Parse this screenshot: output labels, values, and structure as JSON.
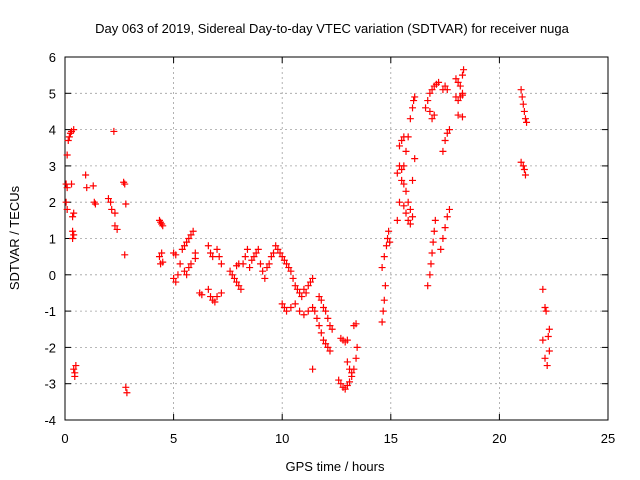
{
  "chart_data": {
    "type": "scatter",
    "title": "Day 063 of 2019, Sidereal Day-to-day VTEC variation (SDTVAR) for receiver nuga",
    "xlabel": "GPS time / hours",
    "ylabel": "SDTVAR / TECUs",
    "xlim": [
      0,
      25
    ],
    "ylim": [
      -4,
      6
    ],
    "xticks": [
      0,
      5,
      10,
      15,
      20,
      25
    ],
    "yticks": [
      -4,
      -3,
      -2,
      -1,
      0,
      1,
      2,
      3,
      4,
      5,
      6
    ],
    "grid": true,
    "marker": "+",
    "color": "#ff0000",
    "series": [
      {
        "name": "SDTVAR",
        "points": [
          [
            0.05,
            2.5
          ],
          [
            0.1,
            2.4
          ],
          [
            0.05,
            2.0
          ],
          [
            0.1,
            1.8
          ],
          [
            0.1,
            3.3
          ],
          [
            0.15,
            3.7
          ],
          [
            0.2,
            3.8
          ],
          [
            0.25,
            3.9
          ],
          [
            0.3,
            3.95
          ],
          [
            0.4,
            4.0
          ],
          [
            0.3,
            2.5
          ],
          [
            0.35,
            1.6
          ],
          [
            0.4,
            1.7
          ],
          [
            0.35,
            1.2
          ],
          [
            0.35,
            1.0
          ],
          [
            0.4,
            1.1
          ],
          [
            0.4,
            -2.6
          ],
          [
            0.45,
            -2.7
          ],
          [
            0.45,
            -2.8
          ],
          [
            0.5,
            -2.5
          ],
          [
            0.95,
            2.75
          ],
          [
            1.0,
            2.4
          ],
          [
            1.3,
            2.45
          ],
          [
            1.35,
            2.0
          ],
          [
            1.4,
            1.95
          ],
          [
            2.0,
            2.1
          ],
          [
            2.1,
            2.0
          ],
          [
            2.15,
            1.8
          ],
          [
            2.25,
            3.95
          ],
          [
            2.3,
            1.7
          ],
          [
            2.3,
            1.35
          ],
          [
            2.4,
            1.25
          ],
          [
            2.7,
            2.55
          ],
          [
            2.75,
            2.5
          ],
          [
            2.8,
            1.95
          ],
          [
            2.75,
            0.55
          ],
          [
            2.8,
            -3.1
          ],
          [
            2.85,
            -3.25
          ],
          [
            4.35,
            1.5
          ],
          [
            4.4,
            1.45
          ],
          [
            4.45,
            1.4
          ],
          [
            4.5,
            1.35
          ],
          [
            4.35,
            0.5
          ],
          [
            4.4,
            0.3
          ],
          [
            4.45,
            0.6
          ],
          [
            4.5,
            0.35
          ],
          [
            5.0,
            0.6
          ],
          [
            5.1,
            0.55
          ],
          [
            5.0,
            -0.1
          ],
          [
            5.1,
            -0.2
          ],
          [
            5.2,
            0.0
          ],
          [
            5.3,
            0.3
          ],
          [
            5.4,
            0.7
          ],
          [
            5.5,
            0.8
          ],
          [
            5.6,
            0.9
          ],
          [
            5.7,
            1.0
          ],
          [
            5.8,
            1.1
          ],
          [
            5.9,
            1.2
          ],
          [
            5.5,
            0.1
          ],
          [
            5.6,
            0.0
          ],
          [
            5.7,
            0.2
          ],
          [
            5.8,
            0.3
          ],
          [
            6.0,
            0.45
          ],
          [
            6.0,
            0.6
          ],
          [
            6.2,
            -0.5
          ],
          [
            6.3,
            -0.55
          ],
          [
            6.6,
            -0.4
          ],
          [
            6.7,
            -0.6
          ],
          [
            6.8,
            -0.7
          ],
          [
            6.9,
            -0.75
          ],
          [
            7.0,
            -0.6
          ],
          [
            6.6,
            0.8
          ],
          [
            6.7,
            0.6
          ],
          [
            6.8,
            0.5
          ],
          [
            7.0,
            0.7
          ],
          [
            7.1,
            0.5
          ],
          [
            7.2,
            0.3
          ],
          [
            7.2,
            -0.5
          ],
          [
            7.6,
            0.1
          ],
          [
            7.7,
            0.0
          ],
          [
            7.8,
            -0.1
          ],
          [
            7.9,
            -0.2
          ],
          [
            8.0,
            -0.3
          ],
          [
            8.1,
            -0.4
          ],
          [
            7.9,
            0.25
          ],
          [
            8.0,
            0.3
          ],
          [
            8.2,
            0.3
          ],
          [
            8.3,
            0.5
          ],
          [
            8.4,
            0.7
          ],
          [
            8.5,
            0.2
          ],
          [
            8.6,
            0.4
          ],
          [
            8.7,
            0.5
          ],
          [
            8.8,
            0.6
          ],
          [
            8.9,
            0.7
          ],
          [
            9.0,
            0.3
          ],
          [
            9.1,
            0.1
          ],
          [
            9.2,
            -0.1
          ],
          [
            9.3,
            0.2
          ],
          [
            9.4,
            0.3
          ],
          [
            9.5,
            0.5
          ],
          [
            9.6,
            0.6
          ],
          [
            9.7,
            0.8
          ],
          [
            9.8,
            0.7
          ],
          [
            9.9,
            0.6
          ],
          [
            10.0,
            0.5
          ],
          [
            10.1,
            0.4
          ],
          [
            10.2,
            0.3
          ],
          [
            10.3,
            0.2
          ],
          [
            10.4,
            0.1
          ],
          [
            10.5,
            -0.1
          ],
          [
            10.6,
            -0.3
          ],
          [
            10.7,
            -0.4
          ],
          [
            10.8,
            -0.5
          ],
          [
            10.9,
            -0.6
          ],
          [
            11.0,
            -0.4
          ],
          [
            11.1,
            -0.5
          ],
          [
            11.2,
            -0.3
          ],
          [
            11.3,
            -0.2
          ],
          [
            11.4,
            -0.1
          ],
          [
            10.0,
            -0.8
          ],
          [
            10.1,
            -0.9
          ],
          [
            10.2,
            -1.0
          ],
          [
            10.4,
            -0.9
          ],
          [
            10.6,
            -0.8
          ],
          [
            10.8,
            -1.0
          ],
          [
            11.0,
            -1.1
          ],
          [
            11.2,
            -1.0
          ],
          [
            11.4,
            -0.9
          ],
          [
            11.5,
            -1.0
          ],
          [
            11.6,
            -1.2
          ],
          [
            11.7,
            -1.4
          ],
          [
            11.8,
            -1.6
          ],
          [
            11.9,
            -1.8
          ],
          [
            12.0,
            -1.9
          ],
          [
            12.1,
            -2.0
          ],
          [
            12.2,
            -2.1
          ],
          [
            11.7,
            -0.6
          ],
          [
            11.8,
            -0.7
          ],
          [
            11.9,
            -0.9
          ],
          [
            12.0,
            -1.0
          ],
          [
            12.1,
            -1.2
          ],
          [
            12.2,
            -1.4
          ],
          [
            12.3,
            -1.5
          ],
          [
            11.4,
            -2.6
          ],
          [
            12.7,
            -1.75
          ],
          [
            12.8,
            -1.8
          ],
          [
            12.9,
            -1.85
          ],
          [
            13.0,
            -1.8
          ],
          [
            12.6,
            -2.9
          ],
          [
            12.7,
            -3.0
          ],
          [
            12.8,
            -3.1
          ],
          [
            12.9,
            -3.15
          ],
          [
            13.0,
            -3.05
          ],
          [
            13.1,
            -2.95
          ],
          [
            13.2,
            -2.8
          ],
          [
            13.3,
            -2.6
          ],
          [
            13.4,
            -2.3
          ],
          [
            13.45,
            -2.0
          ],
          [
            13.0,
            -2.4
          ],
          [
            13.1,
            -2.6
          ],
          [
            13.2,
            -2.7
          ],
          [
            13.3,
            -1.4
          ],
          [
            13.4,
            -1.35
          ],
          [
            14.6,
            -1.3
          ],
          [
            14.65,
            -1.0
          ],
          [
            14.7,
            -0.7
          ],
          [
            14.75,
            -0.3
          ],
          [
            14.6,
            0.2
          ],
          [
            14.7,
            0.5
          ],
          [
            14.8,
            0.8
          ],
          [
            14.85,
            1.0
          ],
          [
            14.9,
            1.2
          ],
          [
            14.95,
            0.9
          ],
          [
            15.3,
            1.5
          ],
          [
            15.4,
            2.0
          ],
          [
            15.5,
            2.6
          ],
          [
            15.6,
            3.0
          ],
          [
            15.7,
            3.4
          ],
          [
            15.8,
            3.8
          ],
          [
            15.9,
            4.3
          ],
          [
            16.0,
            4.6
          ],
          [
            16.05,
            4.8
          ],
          [
            16.1,
            4.9
          ],
          [
            15.4,
            3.55
          ],
          [
            15.5,
            3.7
          ],
          [
            15.6,
            3.8
          ],
          [
            15.3,
            2.8
          ],
          [
            15.4,
            3.0
          ],
          [
            15.5,
            2.9
          ],
          [
            15.6,
            2.5
          ],
          [
            15.7,
            2.3
          ],
          [
            15.8,
            2.0
          ],
          [
            15.9,
            1.8
          ],
          [
            16.0,
            1.6
          ],
          [
            15.6,
            1.9
          ],
          [
            15.7,
            1.7
          ],
          [
            15.8,
            1.5
          ],
          [
            15.9,
            1.4
          ],
          [
            16.0,
            2.6
          ],
          [
            16.1,
            3.2
          ],
          [
            16.6,
            4.6
          ],
          [
            16.7,
            4.8
          ],
          [
            16.8,
            5.0
          ],
          [
            16.9,
            5.1
          ],
          [
            17.0,
            5.2
          ],
          [
            17.1,
            5.25
          ],
          [
            17.2,
            5.3
          ],
          [
            16.8,
            4.5
          ],
          [
            16.9,
            4.3
          ],
          [
            17.0,
            4.4
          ],
          [
            17.4,
            3.4
          ],
          [
            17.5,
            3.7
          ],
          [
            17.6,
            3.9
          ],
          [
            17.7,
            4.0
          ],
          [
            17.4,
            5.1
          ],
          [
            17.5,
            5.2
          ],
          [
            17.6,
            5.1
          ],
          [
            16.7,
            -0.3
          ],
          [
            16.8,
            0.0
          ],
          [
            16.85,
            0.3
          ],
          [
            16.9,
            0.6
          ],
          [
            16.95,
            0.9
          ],
          [
            17.0,
            1.2
          ],
          [
            17.05,
            1.5
          ],
          [
            17.3,
            0.7
          ],
          [
            17.4,
            1.0
          ],
          [
            17.5,
            1.3
          ],
          [
            17.6,
            1.6
          ],
          [
            17.7,
            1.8
          ],
          [
            18.0,
            5.4
          ],
          [
            18.1,
            5.3
          ],
          [
            18.2,
            5.2
          ],
          [
            18.3,
            5.5
          ],
          [
            18.35,
            5.65
          ],
          [
            18.0,
            4.9
          ],
          [
            18.1,
            4.8
          ],
          [
            18.2,
            4.9
          ],
          [
            18.3,
            4.95
          ],
          [
            18.1,
            4.4
          ],
          [
            18.3,
            4.35
          ],
          [
            18.3,
            5.0
          ],
          [
            21.0,
            5.1
          ],
          [
            21.05,
            4.9
          ],
          [
            21.1,
            4.7
          ],
          [
            21.15,
            4.5
          ],
          [
            21.2,
            4.3
          ],
          [
            21.25,
            4.2
          ],
          [
            21.0,
            3.1
          ],
          [
            21.1,
            3.0
          ],
          [
            21.15,
            2.9
          ],
          [
            21.2,
            2.75
          ],
          [
            22.0,
            -0.4
          ],
          [
            22.1,
            -0.9
          ],
          [
            22.15,
            -1.0
          ],
          [
            22.3,
            -1.5
          ],
          [
            22.25,
            -1.7
          ],
          [
            22.3,
            -2.1
          ],
          [
            22.0,
            -1.8
          ],
          [
            22.1,
            -2.3
          ],
          [
            22.2,
            -2.5
          ]
        ]
      }
    ]
  }
}
